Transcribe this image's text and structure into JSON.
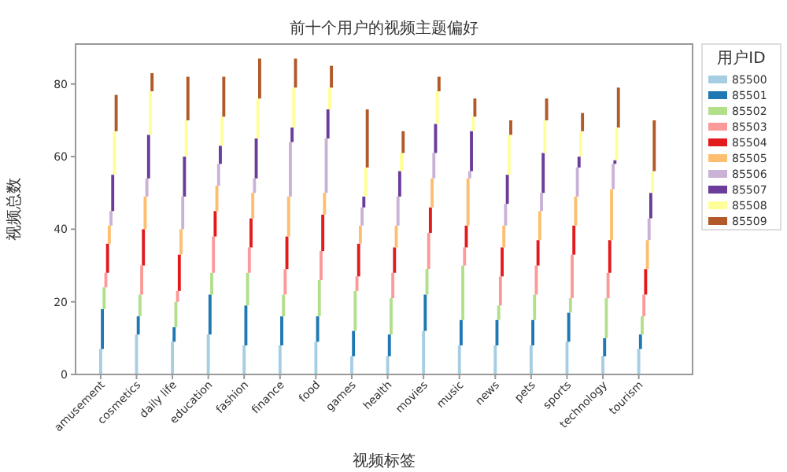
{
  "chart_data": {
    "type": "bar",
    "stacked": true,
    "title": "前十个用户的视频主题偏好",
    "xlabel": "视频标签",
    "ylabel": "视频总数",
    "legend_title": "用户ID",
    "legend": "right",
    "categories": [
      "amusement",
      "cosmetics",
      "daily life",
      "education",
      "fashion",
      "finance",
      "food",
      "games",
      "health",
      "movies",
      "music",
      "news",
      "pets",
      "sports",
      "technology",
      "tourism"
    ],
    "ylim": [
      0,
      91
    ],
    "yticks": [
      0,
      20,
      40,
      60,
      80
    ],
    "series": [
      {
        "name": "85500",
        "color": "#a6cee3",
        "values": [
          7,
          11,
          9,
          11,
          8,
          8,
          9,
          5,
          5,
          12,
          8,
          8,
          8,
          9,
          5,
          7
        ]
      },
      {
        "name": "85501",
        "color": "#1f78b4",
        "values": [
          11,
          5,
          4,
          11,
          11,
          8,
          7,
          7,
          6,
          10,
          7,
          7,
          7,
          8,
          5,
          4
        ]
      },
      {
        "name": "85502",
        "color": "#b2df8a",
        "values": [
          6,
          6,
          7,
          6,
          9,
          6,
          10,
          11,
          10,
          7,
          15,
          4,
          7,
          4,
          11,
          5
        ]
      },
      {
        "name": "85503",
        "color": "#fb9a99",
        "values": [
          4,
          8,
          3,
          10,
          7,
          7,
          8,
          4,
          7,
          10,
          5,
          8,
          8,
          12,
          7,
          6
        ]
      },
      {
        "name": "85504",
        "color": "#e31a1c",
        "values": [
          8,
          10,
          10,
          7,
          8,
          9,
          10,
          9,
          7,
          7,
          6,
          8,
          7,
          8,
          9,
          7
        ]
      },
      {
        "name": "85505",
        "color": "#fdbf6f",
        "values": [
          5,
          9,
          7,
          7,
          7,
          11,
          6,
          5,
          6,
          8,
          13,
          6,
          8,
          8,
          14,
          8
        ]
      },
      {
        "name": "85506",
        "color": "#cab2d6",
        "values": [
          4,
          5,
          9,
          6,
          4,
          15,
          15,
          5,
          8,
          7,
          2,
          6,
          5,
          8,
          7,
          6
        ]
      },
      {
        "name": "85507",
        "color": "#6a3d9a",
        "values": [
          10,
          12,
          11,
          5,
          11,
          4,
          8,
          3,
          7,
          8,
          11,
          8,
          11,
          3,
          1,
          7
        ]
      },
      {
        "name": "85508",
        "color": "#ffff99",
        "values": [
          12,
          12,
          10,
          8,
          11,
          11,
          6,
          8,
          5,
          9,
          4,
          11,
          9,
          7,
          9,
          6
        ]
      },
      {
        "name": "85509",
        "color": "#b15928",
        "values": [
          10,
          5,
          12,
          11,
          11,
          8,
          6,
          16,
          6,
          4,
          5,
          4,
          6,
          5,
          11,
          14
        ]
      }
    ]
  }
}
